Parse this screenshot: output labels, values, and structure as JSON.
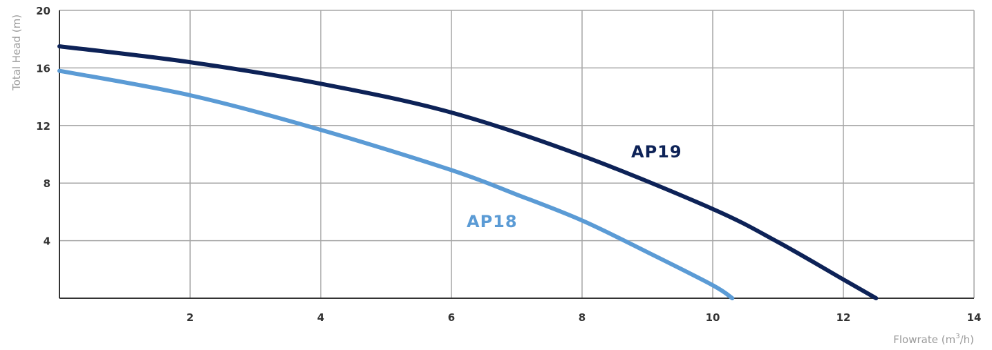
{
  "chart_data": {
    "type": "line",
    "xlabel": "Flowrate (m",
    "xlabel_sup": "3",
    "xlabel_tail": "/h)",
    "ylabel": "Total Head (m)",
    "xlim": [
      0,
      14
    ],
    "ylim": [
      0,
      20
    ],
    "x_ticks": [
      "2",
      "4",
      "6",
      "8",
      "10",
      "12",
      "14"
    ],
    "y_ticks": [
      "4",
      "8",
      "12",
      "16",
      "20"
    ],
    "grid": true,
    "series": [
      {
        "name": "AP19",
        "color": "#0d2257",
        "points": [
          [
            0,
            17.5
          ],
          [
            2,
            16.4
          ],
          [
            4,
            14.9
          ],
          [
            6,
            12.9
          ],
          [
            8,
            9.9
          ],
          [
            10,
            6.2
          ],
          [
            11,
            3.9
          ],
          [
            12,
            1.3
          ],
          [
            12.5,
            0
          ]
        ]
      },
      {
        "name": "AP18",
        "color": "#5b9bd5",
        "points": [
          [
            0,
            15.8
          ],
          [
            2,
            14.1
          ],
          [
            4,
            11.7
          ],
          [
            6,
            8.9
          ],
          [
            7,
            7.2
          ],
          [
            8,
            5.4
          ],
          [
            9,
            3.2
          ],
          [
            10,
            0.9
          ],
          [
            10.3,
            0
          ]
        ]
      }
    ]
  }
}
